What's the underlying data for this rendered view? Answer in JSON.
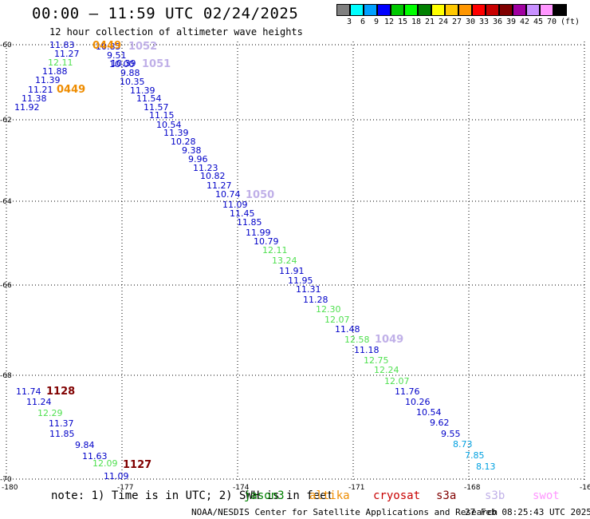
{
  "header": {
    "title": "00:00 – 11:59 UTC 02/24/2025",
    "subtitle": "12 hour collection of altimeter wave heights"
  },
  "legend": {
    "colors": [
      "#808080",
      "#00ffff",
      "#00a0ff",
      "#0000ff",
      "#00c800",
      "#00ff00",
      "#008000",
      "#ffff00",
      "#ffc800",
      "#ff9600",
      "#ff0000",
      "#c80000",
      "#800000",
      "#a000a0",
      "#c890ff",
      "#ff96ff",
      "#000000"
    ],
    "labels": [
      "3",
      "6",
      "9",
      "12",
      "15",
      "18",
      "21",
      "24",
      "27",
      "30",
      "33",
      "36",
      "39",
      "42",
      "45",
      "70",
      "(ft)"
    ]
  },
  "map": {
    "lon_ticks": [
      "-180",
      "-177",
      "-174",
      "-171",
      "-168",
      "-16"
    ],
    "lat_ticks": [
      "-60",
      "-62",
      "-64",
      "-66",
      "-68",
      "-70"
    ],
    "pass_labels": [
      {
        "text": "1052",
        "color": "#c0b0e8"
      },
      {
        "text": "1051",
        "color": "#c0b0e8"
      },
      {
        "text": "1050",
        "color": "#c0b0e8"
      },
      {
        "text": "1049",
        "color": "#c0b0e8"
      },
      {
        "text": "0449",
        "color": "#ee8c00"
      },
      {
        "text": "0449",
        "color": "#ee8c00"
      },
      {
        "text": "1128",
        "color": "#800000"
      },
      {
        "text": "1127",
        "color": "#800000"
      }
    ],
    "observations": [
      {
        "text": "11.83",
        "color": "#0000c8"
      },
      {
        "text": "11.27",
        "color": "#0000c8"
      },
      {
        "text": "12.11",
        "color": "#50e050"
      },
      {
        "text": "11.88",
        "color": "#0000c8"
      },
      {
        "text": "11.39",
        "color": "#0000c8"
      },
      {
        "text": "11.21",
        "color": "#0000c8"
      },
      {
        "text": "11.38",
        "color": "#0000c8"
      },
      {
        "text": "11.92",
        "color": "#0000c8"
      },
      {
        "text": "10.85",
        "color": "#0000c8"
      },
      {
        "text": "9.51",
        "color": "#0000c8"
      },
      {
        "text": "10.39",
        "color": "#0000c8"
      },
      {
        "text": "10.00",
        "color": "#0000c8"
      },
      {
        "text": "9.88",
        "color": "#0000c8"
      },
      {
        "text": "10.35",
        "color": "#0000c8"
      },
      {
        "text": "11.39",
        "color": "#0000c8"
      },
      {
        "text": "11.54",
        "color": "#0000c8"
      },
      {
        "text": "11.57",
        "color": "#0000c8"
      },
      {
        "text": "11.15",
        "color": "#0000c8"
      },
      {
        "text": "10.54",
        "color": "#0000c8"
      },
      {
        "text": "11.39",
        "color": "#0000c8"
      },
      {
        "text": "10.28",
        "color": "#0000c8"
      },
      {
        "text": "9.38",
        "color": "#0000c8"
      },
      {
        "text": "9.96",
        "color": "#0000c8"
      },
      {
        "text": "11.23",
        "color": "#0000c8"
      },
      {
        "text": "10.82",
        "color": "#0000c8"
      },
      {
        "text": "11.27",
        "color": "#0000c8"
      },
      {
        "text": "10.74",
        "color": "#0000c8"
      },
      {
        "text": "11.09",
        "color": "#0000c8"
      },
      {
        "text": "11.45",
        "color": "#0000c8"
      },
      {
        "text": "11.85",
        "color": "#0000c8"
      },
      {
        "text": "11.99",
        "color": "#0000c8"
      },
      {
        "text": "10.79",
        "color": "#0000c8"
      },
      {
        "text": "12.11",
        "color": "#50e050"
      },
      {
        "text": "13.24",
        "color": "#50e050"
      },
      {
        "text": "11.91",
        "color": "#0000c8"
      },
      {
        "text": "11.95",
        "color": "#0000c8"
      },
      {
        "text": "11.31",
        "color": "#0000c8"
      },
      {
        "text": "11.28",
        "color": "#0000c8"
      },
      {
        "text": "12.30",
        "color": "#50e050"
      },
      {
        "text": "12.07",
        "color": "#50e050"
      },
      {
        "text": "11.48",
        "color": "#0000c8"
      },
      {
        "text": "12.58",
        "color": "#50e050"
      },
      {
        "text": "11.18",
        "color": "#0000c8"
      },
      {
        "text": "12.75",
        "color": "#50e050"
      },
      {
        "text": "12.24",
        "color": "#50e050"
      },
      {
        "text": "12.07",
        "color": "#50e050"
      },
      {
        "text": "11.76",
        "color": "#0000c8"
      },
      {
        "text": "10.26",
        "color": "#0000c8"
      },
      {
        "text": "10.54",
        "color": "#0000c8"
      },
      {
        "text": "9.62",
        "color": "#0000c8"
      },
      {
        "text": "9.55",
        "color": "#0000c8"
      },
      {
        "text": "8.73",
        "color": "#00a0e0"
      },
      {
        "text": "7.85",
        "color": "#00a0e0"
      },
      {
        "text": "8.13",
        "color": "#00a0e0"
      },
      {
        "text": "11.74",
        "color": "#0000c8"
      },
      {
        "text": "11.24",
        "color": "#0000c8"
      },
      {
        "text": "12.29",
        "color": "#50e050"
      },
      {
        "text": "11.37",
        "color": "#0000c8"
      },
      {
        "text": "11.85",
        "color": "#0000c8"
      },
      {
        "text": "9.84",
        "color": "#0000c8"
      },
      {
        "text": "11.63",
        "color": "#0000c8"
      },
      {
        "text": "12.09",
        "color": "#50e050"
      },
      {
        "text": "11.09",
        "color": "#0000c8"
      }
    ]
  },
  "footer": {
    "note": "note: 1) Time is in UTC; 2) SWH is in feet",
    "satellites": [
      {
        "name": "jason3",
        "color": "#008000"
      },
      {
        "name": "altika",
        "color": "#ee8c00"
      },
      {
        "name": "cryosat",
        "color": "#c80000"
      },
      {
        "name": "s3a",
        "color": "#800000"
      },
      {
        "name": "s3b",
        "color": "#c0b0e8"
      },
      {
        "name": "swot",
        "color": "#ff96ff"
      }
    ],
    "credit": "NOAA/NESDIS Center for Satellite Applications and Research",
    "timestamp": "27 Feb 08:25:43 UTC 2025"
  }
}
